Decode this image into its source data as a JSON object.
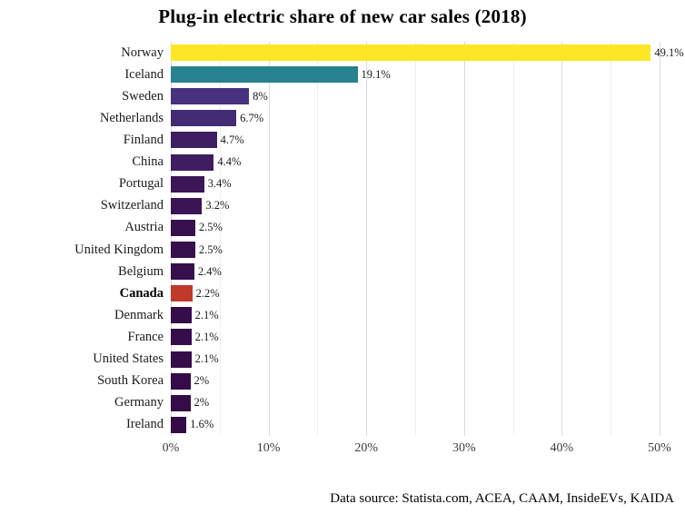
{
  "caption": "Data source: Statista.com, ACEA, CAAM, InsideEVs, KAIDA",
  "chart_data": {
    "type": "bar",
    "orientation": "horizontal",
    "title": "Plug-in electric share of new car sales (2018)",
    "categories": [
      "Norway",
      "Iceland",
      "Sweden",
      "Netherlands",
      "Finland",
      "China",
      "Portugal",
      "Switzerland",
      "Austria",
      "United Kingdom",
      "Belgium",
      "Canada",
      "Denmark",
      "France",
      "United States",
      "South Korea",
      "Germany",
      "Ireland"
    ],
    "values": [
      49.1,
      19.1,
      8,
      6.7,
      4.7,
      4.4,
      3.4,
      3.2,
      2.5,
      2.5,
      2.4,
      2.2,
      2.1,
      2.1,
      2.1,
      2,
      2,
      1.6
    ],
    "value_labels": [
      "49.1%",
      "19.1%",
      "8%",
      "6.7%",
      "4.7%",
      "4.4%",
      "3.4%",
      "3.2%",
      "2.5%",
      "2.5%",
      "2.4%",
      "2.2%",
      "2.1%",
      "2.1%",
      "2.1%",
      "2%",
      "2%",
      "1.6%"
    ],
    "colors": [
      "#FDE725",
      "#26828E",
      "#46327E",
      "#432C74",
      "#3F1F63",
      "#3E1D60",
      "#3B1656",
      "#3A1454",
      "#38104E",
      "#38104E",
      "#370F4D",
      "#C0392B",
      "#360D4A",
      "#360D4A",
      "#360D4A",
      "#350C49",
      "#350C49",
      "#340B47"
    ],
    "highlight_category": "Canada",
    "highlight_color": "#C0392B",
    "xlabel": "",
    "ylabel": "",
    "xlim": [
      0,
      50
    ],
    "x_ticks": [
      "0%",
      "10%",
      "20%",
      "30%",
      "40%",
      "50%"
    ],
    "grid": true,
    "grid_major_color": "#dcdcdc",
    "grid_minor_color": "#efefef",
    "legend": "none"
  }
}
